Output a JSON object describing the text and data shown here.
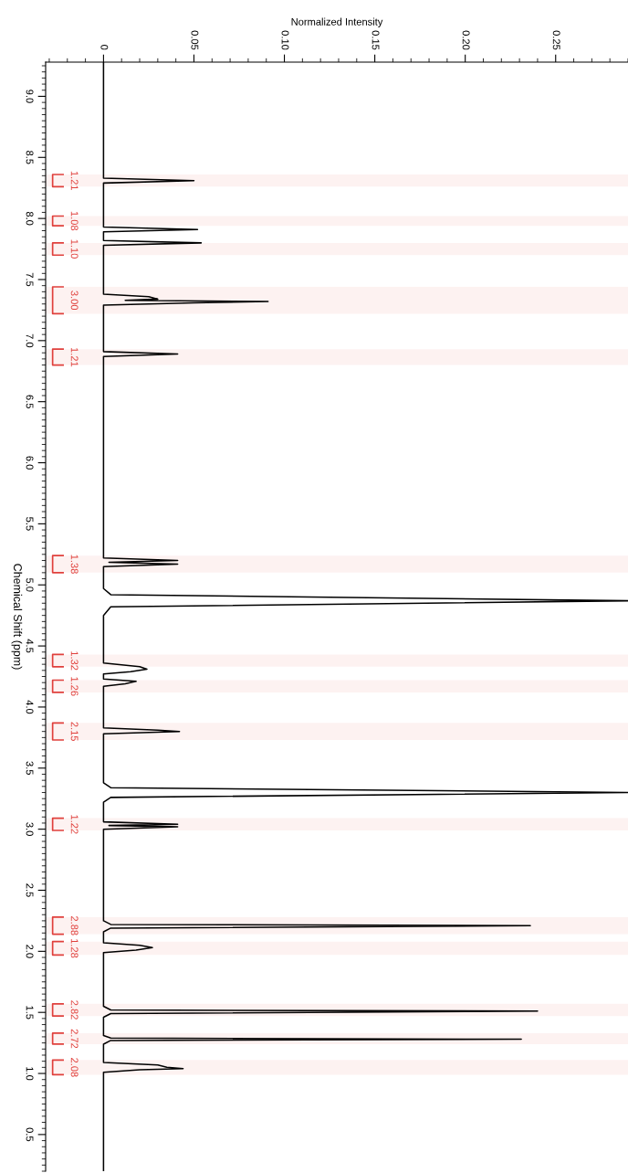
{
  "chart_data": {
    "type": "line",
    "orientation": "horizontal",
    "xlabel": "Normalized Intensity",
    "ylabel": "Chemical Shift (ppm)",
    "xlim": [
      -0.032,
      0.29
    ],
    "ylim": [
      0.2,
      9.28
    ],
    "xticks": [
      0,
      0.05,
      {
        "value": 0.1,
        "label": "0.10"
      },
      0.15,
      {
        "value": 0.2,
        "label": "0.20"
      },
      0.25
    ],
    "yticks": [
      {
        "value": 9.0,
        "label": "9.0"
      },
      8.5,
      {
        "value": 8.0,
        "label": "8.0"
      },
      7.5,
      {
        "value": 7.0,
        "label": "7.0"
      },
      6.5,
      {
        "value": 6.0,
        "label": "6.0"
      },
      5.5,
      {
        "value": 5.0,
        "label": "5.0"
      },
      4.5,
      {
        "value": 4.0,
        "label": "4.0"
      },
      3.5,
      {
        "value": 3.0,
        "label": "3.0"
      },
      2.5,
      {
        "value": 2.0,
        "label": "2.0"
      },
      1.5,
      {
        "value": 1.0,
        "label": "1.0"
      },
      0.5
    ],
    "grid": false,
    "legend": false,
    "marker": "none",
    "line_style": "solid",
    "series": [
      {
        "color": "#000000",
        "x": [
          9.28,
          8.33,
          8.31,
          8.29,
          7.93,
          7.91,
          7.89,
          7.82,
          7.8,
          7.78,
          7.38,
          7.36,
          7.34,
          7.33,
          7.32,
          7.31,
          7.29,
          6.91,
          6.89,
          6.87,
          5.22,
          5.2,
          5.185,
          5.17,
          5.15,
          4.97,
          4.92,
          4.87,
          4.82,
          4.75,
          4.36,
          4.33,
          4.31,
          4.29,
          4.27,
          4.23,
          4.21,
          4.19,
          4.17,
          3.83,
          3.81,
          3.8,
          3.78,
          3.38,
          3.34,
          3.3,
          3.26,
          3.22,
          3.06,
          3.04,
          3.03,
          3.02,
          3.0,
          2.25,
          2.22,
          2.21,
          2.19,
          2.16,
          2.07,
          2.05,
          2.03,
          2.01,
          1.99,
          1.55,
          1.52,
          1.51,
          1.49,
          1.46,
          1.31,
          1.29,
          1.28,
          1.27,
          1.24,
          1.09,
          1.07,
          1.05,
          1.04,
          1.03,
          1.01,
          0.2
        ],
        "values": [
          0,
          0,
          0.05,
          0,
          0,
          0.052,
          0,
          0,
          0.054,
          0,
          0,
          0.025,
          0.03,
          0.012,
          0.091,
          0.05,
          0,
          0,
          0.041,
          0,
          0,
          0.041,
          0.003,
          0.041,
          0,
          0,
          0.004,
          0.29,
          0.004,
          0,
          0,
          0.02,
          0.024,
          0.015,
          0,
          0,
          0.018,
          0.012,
          0,
          0,
          0.03,
          0.042,
          0,
          0,
          0.004,
          0.29,
          0.004,
          0,
          0,
          0.041,
          0.003,
          0.041,
          0,
          0,
          0.004,
          0.236,
          0.004,
          0,
          0,
          0.02,
          0.027,
          0.018,
          0,
          0,
          0.004,
          0.24,
          0.004,
          0,
          0,
          0.004,
          0.231,
          0.004,
          0,
          0,
          0.03,
          0.035,
          0.044,
          0.02,
          0,
          0
        ]
      }
    ],
    "bands": [
      {
        "axis": "y",
        "from": 8.36,
        "to": 8.26,
        "label": "1.21",
        "color": "#e0403c"
      },
      {
        "axis": "y",
        "from": 8.02,
        "to": 7.94,
        "label": "1.08",
        "color": "#e0403c"
      },
      {
        "axis": "y",
        "from": 7.8,
        "to": 7.7,
        "label": "1.10",
        "color": "#e0403c"
      },
      {
        "axis": "y",
        "from": 7.44,
        "to": 7.22,
        "label": "3.00",
        "color": "#e0403c"
      },
      {
        "axis": "y",
        "from": 6.93,
        "to": 6.8,
        "label": "1.21",
        "color": "#e0403c"
      },
      {
        "axis": "y",
        "from": 5.24,
        "to": 5.1,
        "label": "1.38",
        "color": "#e0403c"
      },
      {
        "axis": "y",
        "from": 4.43,
        "to": 4.33,
        "label": "1.32",
        "color": "#e0403c"
      },
      {
        "axis": "y",
        "from": 4.22,
        "to": 4.12,
        "label": "1.26",
        "color": "#e0403c"
      },
      {
        "axis": "y",
        "from": 3.87,
        "to": 3.73,
        "label": "2.15",
        "color": "#e0403c"
      },
      {
        "axis": "y",
        "from": 3.09,
        "to": 2.99,
        "label": "1.22",
        "color": "#e0403c"
      },
      {
        "axis": "y",
        "from": 2.28,
        "to": 2.14,
        "label": "2.88",
        "color": "#e0403c"
      },
      {
        "axis": "y",
        "from": 2.08,
        "to": 1.97,
        "label": "1.28",
        "color": "#e0403c"
      },
      {
        "axis": "y",
        "from": 1.57,
        "to": 1.47,
        "label": "2.82",
        "color": "#e0403c"
      },
      {
        "axis": "y",
        "from": 1.33,
        "to": 1.24,
        "label": "2.72",
        "color": "#e0403c"
      },
      {
        "axis": "y",
        "from": 1.11,
        "to": 0.99,
        "label": "2.08",
        "color": "#e0403c"
      }
    ]
  }
}
